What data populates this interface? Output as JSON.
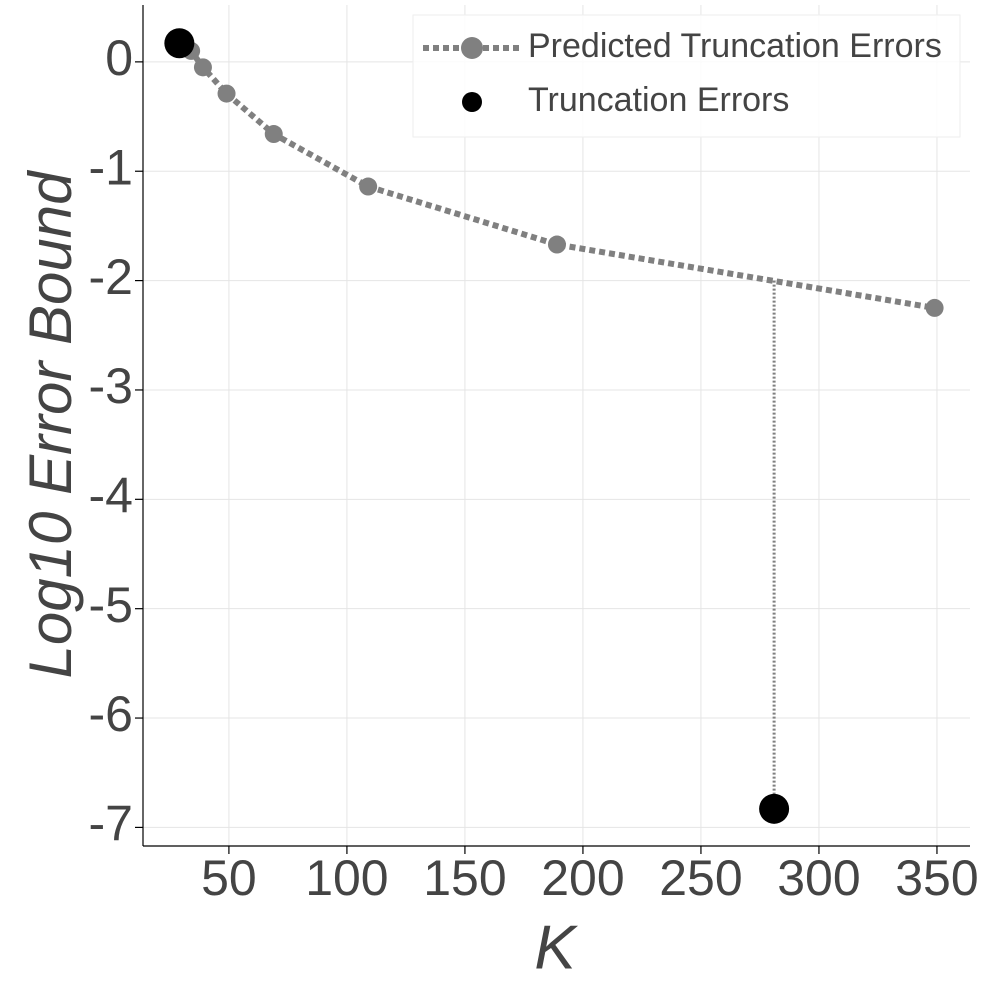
{
  "chart_data": {
    "type": "line",
    "x_label": "K",
    "y_label": "Log10 Error Bound",
    "xlim": [
      13.6,
      364
    ],
    "ylim": [
      -7.17,
      0.52
    ],
    "xticks": [
      50,
      100,
      150,
      200,
      250,
      300,
      350
    ],
    "yticks": [
      0,
      -1,
      -2,
      -3,
      -4,
      -5,
      -6,
      -7
    ],
    "grid": true,
    "legend": "upper right",
    "series": [
      {
        "name": "Predicted Truncation Errors",
        "color": "#808080",
        "line": "dotted",
        "x": [
          29,
          34,
          39,
          49,
          69,
          109,
          189,
          349
        ],
        "values": [
          0.17,
          0.1,
          -0.05,
          -0.29,
          -0.66,
          -1.14,
          -1.67,
          -2.25
        ]
      },
      {
        "name": "Truncation Errors",
        "color": "#000000",
        "line": "none",
        "x": [
          29,
          281
        ],
        "values": [
          0.17,
          -6.83
        ]
      }
    ],
    "drop_line": {
      "x": 281,
      "y": [
        -2.0,
        -6.83
      ],
      "color": "#808080"
    }
  }
}
